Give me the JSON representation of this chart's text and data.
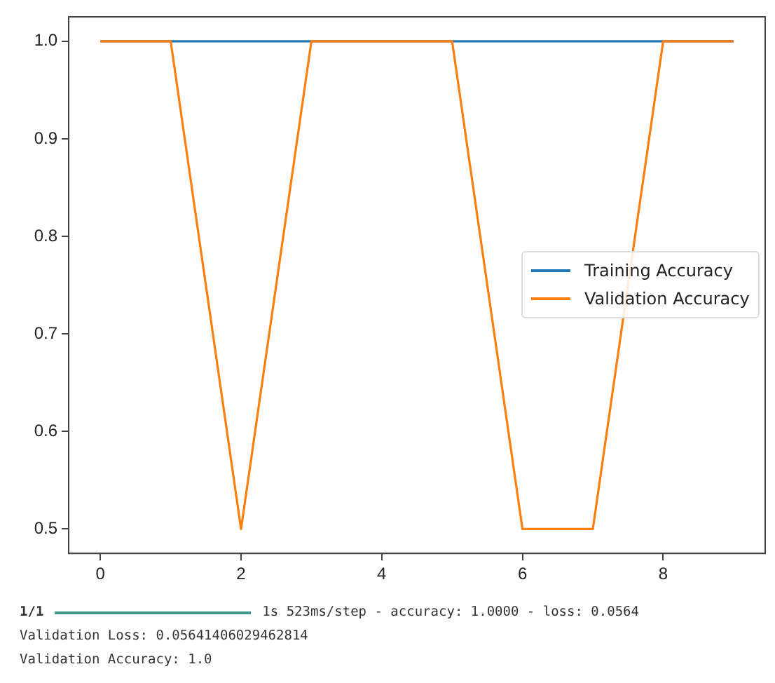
{
  "chart_data": {
    "type": "line",
    "x": [
      0,
      1,
      2,
      3,
      4,
      5,
      6,
      7,
      8,
      9
    ],
    "series": [
      {
        "name": "Training Accuracy",
        "color": "#1f77b4",
        "values": [
          1,
          1,
          1,
          1,
          1,
          1,
          1,
          1,
          1,
          1
        ]
      },
      {
        "name": "Validation Accuracy",
        "color": "#ff7f0e",
        "values": [
          1,
          1,
          0.5,
          1,
          1,
          1,
          0.5,
          0.5,
          1,
          1
        ]
      }
    ],
    "xlim": [
      -0.45,
      9.45
    ],
    "xticks": [
      0,
      2,
      4,
      6,
      8
    ],
    "ylim": [
      0.475,
      1.025
    ],
    "yticks": [
      {
        "value": 0.5,
        "label": "0.5"
      },
      {
        "value": 0.6,
        "label": "0.6"
      },
      {
        "value": 0.7,
        "label": "0.7"
      },
      {
        "value": 0.8,
        "label": "0.8"
      },
      {
        "value": 0.9,
        "label": "0.9"
      },
      {
        "value": 1,
        "label": "1.0"
      }
    ],
    "grid": false,
    "legend": "right",
    "marker": "none",
    "line_style": "solid",
    "annotations": [
      "1/1",
      "1s 523ms/step - accuracy: 1.0000 - loss: 0.0564",
      "Validation Loss: 0.05641406029462814",
      "Validation Accuracy: 1.0"
    ]
  }
}
